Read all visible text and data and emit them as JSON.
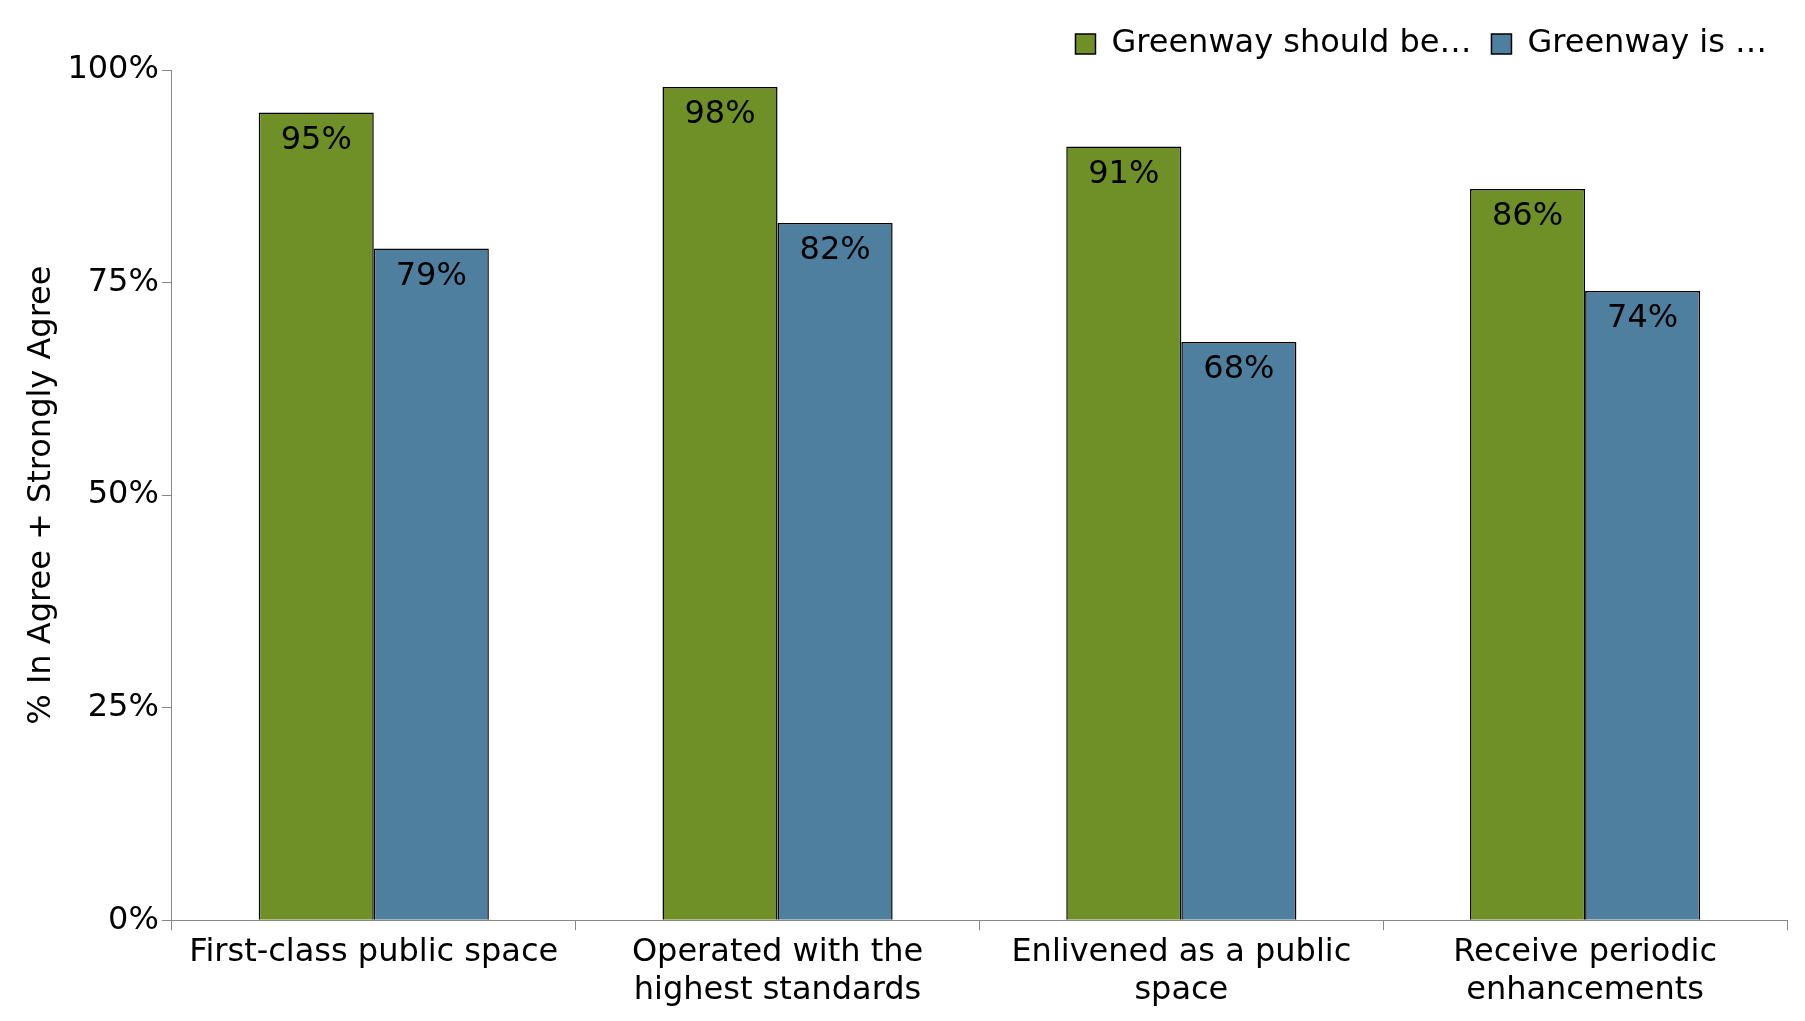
{
  "chart_data": {
    "type": "bar",
    "ylabel": "% In Agree + Strongly Agree",
    "categories": [
      "First-class public space",
      "Operated with the highest standards",
      "Enlivened as a public space",
      "Receive periodic enhancements"
    ],
    "series": [
      {
        "name": "Greenway should be…",
        "color": "#6f8f27",
        "values": [
          95,
          98,
          91,
          86
        ],
        "value_labels": [
          "95%",
          "98%",
          "91%",
          "86%"
        ]
      },
      {
        "name": "Greenway is …",
        "color": "#4f7f9f",
        "values": [
          79,
          82,
          68,
          74
        ],
        "value_labels": [
          "79%",
          "82%",
          "68%",
          "74%"
        ]
      }
    ],
    "ylim": [
      0,
      100
    ],
    "yticks": [
      {
        "value": 0,
        "label": "0%"
      },
      {
        "value": 25,
        "label": "25%"
      },
      {
        "value": 50,
        "label": "50%"
      },
      {
        "value": 75,
        "label": "75%"
      },
      {
        "value": 100,
        "label": "100%"
      }
    ],
    "grid": false,
    "legend": "top right"
  }
}
